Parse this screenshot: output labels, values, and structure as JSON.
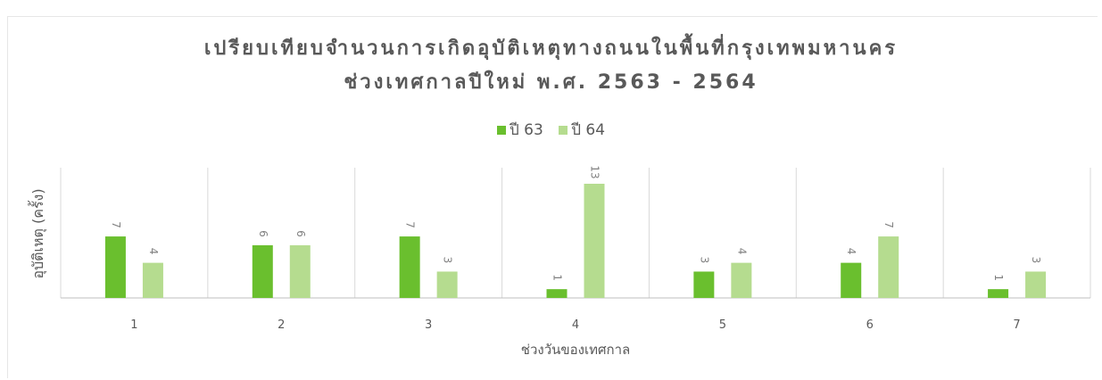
{
  "chart_data": {
    "type": "bar",
    "title": "เปรียบเทียบจำนวนการเกิดอุบัติเหตุทางถนนในพื้นที่กรุงเทพมหานคร",
    "subtitle": "ช่วงเทศกาลปีใหม่ พ.ศ. 2563 - 2564",
    "xlabel": "ช่วงวันของเทศกาล",
    "ylabel": "อุบัติเหตุ (ครั้ง)",
    "categories": [
      "1",
      "2",
      "3",
      "4",
      "5",
      "6",
      "7"
    ],
    "series": [
      {
        "name": "ปี 63",
        "values": [
          7,
          6,
          7,
          1,
          3,
          4,
          1
        ],
        "color": "#6abf2e"
      },
      {
        "name": "ปี 64",
        "values": [
          4,
          6,
          3,
          13,
          4,
          7,
          3
        ],
        "color": "#b5dc8f"
      }
    ],
    "ylim": [
      0,
      13
    ],
    "legend_position": "top",
    "grid": false
  }
}
